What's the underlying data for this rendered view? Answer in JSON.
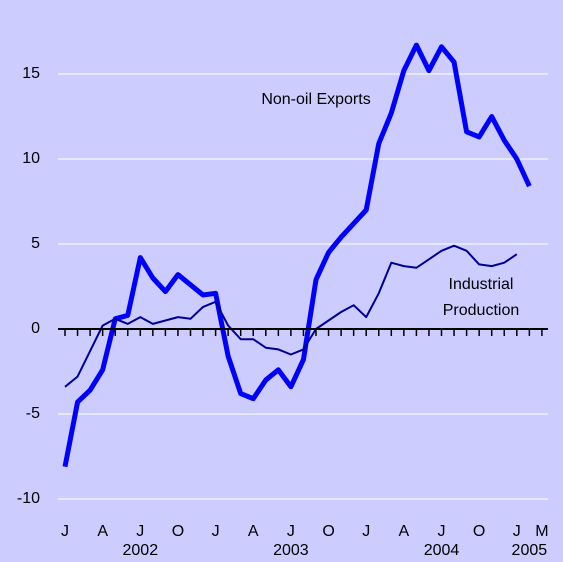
{
  "chart_data": {
    "type": "line",
    "categories": [
      "J",
      null,
      null,
      "A",
      null,
      null,
      "J",
      null,
      null,
      "O",
      null,
      null,
      "J",
      null,
      null,
      "A",
      null,
      null,
      "J",
      null,
      null,
      "O",
      null,
      null,
      "J",
      null,
      null,
      "A",
      null,
      null,
      "J",
      null,
      null,
      "O",
      null,
      null,
      "J",
      null,
      "M"
    ],
    "years": [
      "2002",
      "2003",
      "2004",
      "2005"
    ],
    "series": [
      {
        "name": "Non-oil Exports",
        "color": "#0000ff",
        "width": 5,
        "values": [
          -8.1,
          -4.3,
          -3.6,
          -2.4,
          0.6,
          0.8,
          4.2,
          3.0,
          2.2,
          3.2,
          2.6,
          2.0,
          2.1,
          -1.6,
          -3.8,
          -4.1,
          -3.0,
          -2.4,
          -3.4,
          -1.8,
          2.9,
          4.5,
          5.4,
          6.2,
          7.0,
          10.9,
          12.7,
          15.2,
          16.7,
          15.2,
          16.6,
          15.7,
          11.6,
          11.3,
          12.5,
          11.1,
          10.0,
          8.4,
          null
        ]
      },
      {
        "name": "Industrial Production",
        "color": "#000099",
        "width": 2,
        "values": [
          -3.4,
          -2.8,
          -1.3,
          0.2,
          0.6,
          0.3,
          0.7,
          0.3,
          0.5,
          0.7,
          0.6,
          1.3,
          1.6,
          0.2,
          -0.6,
          -0.6,
          -1.1,
          -1.2,
          -1.5,
          -1.2,
          0.0,
          0.5,
          1.0,
          1.4,
          0.7,
          2.1,
          3.9,
          3.7,
          3.6,
          4.1,
          4.6,
          4.9,
          4.6,
          3.8,
          3.7,
          3.9,
          4.4,
          null,
          null
        ]
      }
    ],
    "annotations": [
      "Non-oil Exports",
      "Industrial",
      "Production"
    ],
    "ylim": [
      -11,
      18
    ],
    "yticks": [
      -10,
      -5,
      0,
      5,
      10,
      15
    ],
    "grid": true
  }
}
